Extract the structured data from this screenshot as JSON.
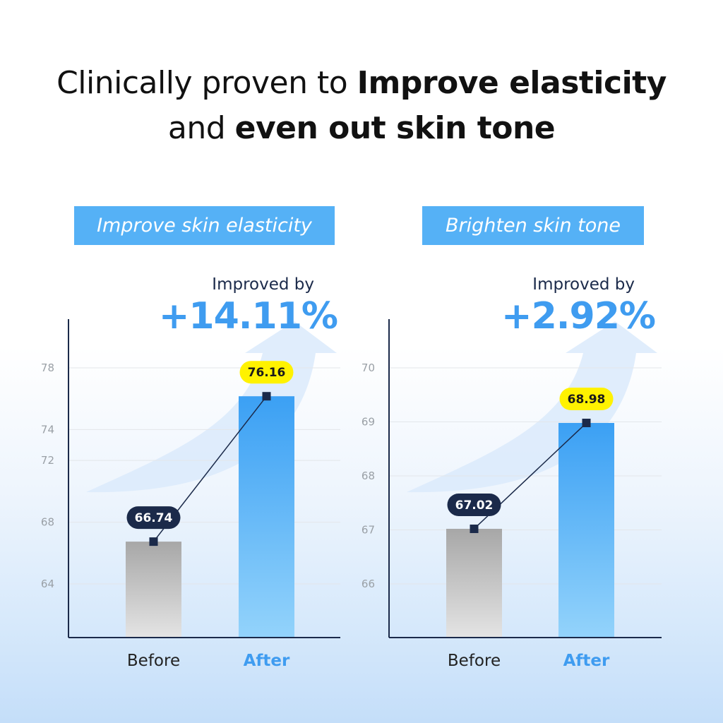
{
  "headline": {
    "part1": "Clinically proven to ",
    "bold1": "Improve elasticity",
    "part2": "and ",
    "bold2": "even out skin tone"
  },
  "colors": {
    "accent": "#3f9cf0",
    "pill": "#55b1f6",
    "navy": "#1b2a4a",
    "highlight": "#fff200",
    "before_top": "#a7a7a7",
    "before_bottom": "#e4e4e4",
    "after_top": "#3ba0f4",
    "after_bottom": "#93d3fb",
    "arrow": "#dbeafb"
  },
  "chart_data": [
    {
      "type": "bar",
      "title": "Improve skin elasticity",
      "improvement_label": "Improved by",
      "improvement_value": "+14.11%",
      "categories": [
        "Before",
        "After"
      ],
      "values": [
        66.74,
        76.16
      ],
      "value_labels": [
        "66.74",
        "76.16"
      ],
      "yticks": [
        64,
        68,
        72,
        74,
        78
      ],
      "ytick_labels": [
        "64",
        "68",
        "72",
        "74",
        "78"
      ],
      "ylim": [
        61,
        80
      ],
      "grid": true
    },
    {
      "type": "bar",
      "title": "Brighten skin tone",
      "improvement_label": "Improved by",
      "improvement_value": "+2.92%",
      "categories": [
        "Before",
        "After"
      ],
      "values": [
        67.02,
        68.98
      ],
      "value_labels": [
        "67.02",
        "68.98"
      ],
      "yticks": [
        66,
        67,
        68,
        69,
        70
      ],
      "ytick_labels": [
        "66",
        "67",
        "68",
        "69",
        "70"
      ],
      "ylim": [
        65.0,
        70.5
      ],
      "grid": true
    }
  ]
}
